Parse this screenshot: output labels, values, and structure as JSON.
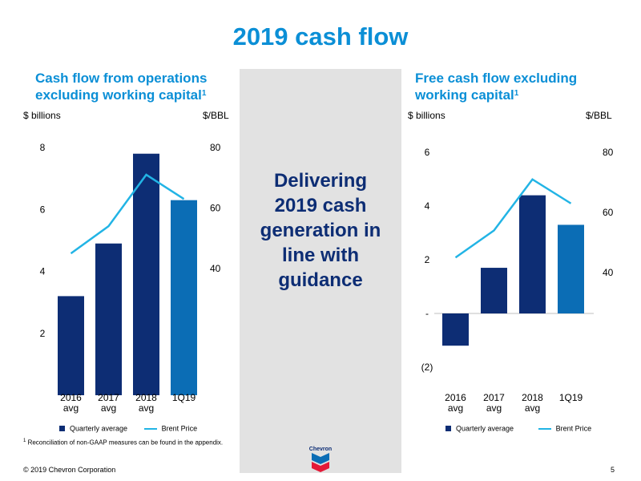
{
  "page": {
    "title": "2019 cash flow",
    "middle_text": [
      "Delivering",
      "2019 cash",
      "generation in",
      "line with",
      "guidance"
    ],
    "footnote_mark": "1",
    "footnote": "Reconciliation of non-GAAP measures can be found in the appendix.",
    "copyright": "© 2019 Chevron Corporation",
    "page_number": "5",
    "logo_text": "Chevron"
  },
  "legend": {
    "bar_label": "Quarterly average",
    "line_label": "Brent Price"
  },
  "colors": {
    "title": "#0b8fd6",
    "bar": "#0d2d74",
    "bar_highlight": "#0b6db5",
    "line": "#22b4e5",
    "panel": "#e2e2e2"
  },
  "chart_data": [
    {
      "type": "bar+line",
      "title_line1": "Cash flow from operations",
      "title_line2": "excluding working capital",
      "title_sup": "1",
      "ylabel_left": "$ billions",
      "ylabel_right": "$/BBL",
      "categories": [
        [
          "2016",
          "avg"
        ],
        [
          "2017",
          "avg"
        ],
        [
          "2018",
          "avg"
        ],
        [
          "1Q19"
        ]
      ],
      "ylim_left": [
        0,
        8
      ],
      "left_ticks": [
        "8",
        "6",
        "4",
        "2"
      ],
      "left_tick_values": [
        8,
        6,
        4,
        2
      ],
      "ylim_right": [
        0,
        80
      ],
      "right_ticks": [
        "80",
        "60",
        "40"
      ],
      "right_tick_values": [
        80,
        60,
        40
      ],
      "series": [
        {
          "name": "Quarterly average",
          "type": "bar",
          "axis": "left",
          "values": [
            3.2,
            4.9,
            7.8,
            6.3
          ]
        },
        {
          "name": "Brent Price",
          "type": "line",
          "axis": "right",
          "values": [
            45,
            54,
            71,
            63
          ]
        }
      ]
    },
    {
      "type": "bar+line",
      "title_line1": "Free cash flow excluding",
      "title_line2": "working capital",
      "title_sup": "1",
      "ylabel_left": "$ billions",
      "ylabel_right": "$/BBL",
      "categories": [
        [
          "2016",
          "avg"
        ],
        [
          "2017",
          "avg"
        ],
        [
          "2018",
          "avg"
        ],
        [
          "1Q19"
        ]
      ],
      "ylim_left": [
        -2,
        6
      ],
      "left_ticks": [
        "6",
        "4",
        "2",
        "-",
        "(2)"
      ],
      "left_tick_values": [
        6,
        4,
        2,
        0,
        -2
      ],
      "ylim_right": [
        20,
        80
      ],
      "right_ticks": [
        "80",
        "60",
        "40"
      ],
      "right_tick_values": [
        80,
        60,
        40
      ],
      "series": [
        {
          "name": "Quarterly average",
          "type": "bar",
          "axis": "left",
          "values": [
            -1.2,
            1.7,
            4.4,
            3.3
          ]
        },
        {
          "name": "Brent Price",
          "type": "line",
          "axis": "right",
          "values": [
            45,
            54,
            71,
            63
          ]
        }
      ]
    }
  ]
}
